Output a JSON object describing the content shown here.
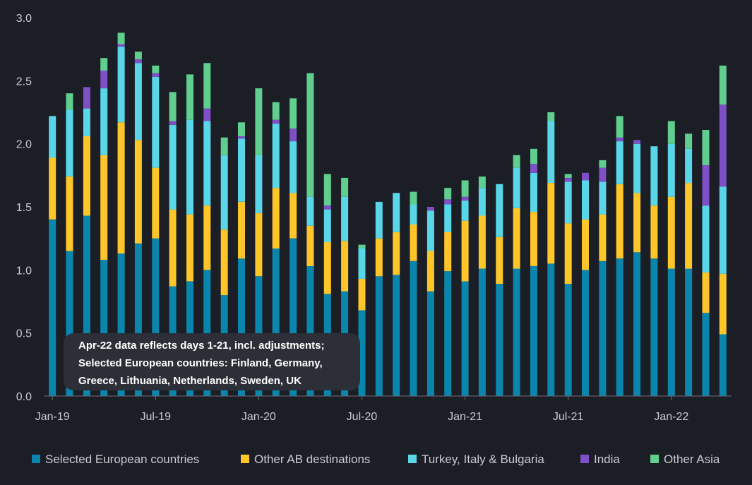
{
  "colors": {
    "background": "#1c1e26",
    "axis": "#6b6e78",
    "text": "#c9cbd1",
    "note_bg": "#2d2f38",
    "note_text": "#ffffff"
  },
  "chart_data": {
    "type": "bar",
    "stacked": true,
    "title": "",
    "xlabel": "",
    "ylabel": "",
    "ylim": [
      0,
      3.0
    ],
    "y_ticks": [
      "0.0",
      "0.5",
      "1.0",
      "1.5",
      "2.0",
      "2.5",
      "3.0"
    ],
    "x_tick_labels": [
      {
        "label": "Jan-19",
        "index": 0
      },
      {
        "label": "Jul-19",
        "index": 6
      },
      {
        "label": "Jan-20",
        "index": 12
      },
      {
        "label": "Jul-20",
        "index": 18
      },
      {
        "label": "Jan-21",
        "index": 24
      },
      {
        "label": "Jul-21",
        "index": 30
      },
      {
        "label": "Jan-22",
        "index": 36
      }
    ],
    "grid": false,
    "legend_position": "bottom",
    "categories": [
      "Jan-19",
      "Feb-19",
      "Mar-19",
      "Apr-19",
      "May-19",
      "Jun-19",
      "Jul-19",
      "Aug-19",
      "Sep-19",
      "Oct-19",
      "Nov-19",
      "Dec-19",
      "Jan-20",
      "Feb-20",
      "Mar-20",
      "Apr-20",
      "May-20",
      "Jun-20",
      "Jul-20",
      "Aug-20",
      "Sep-20",
      "Oct-20",
      "Nov-20",
      "Dec-20",
      "Jan-21",
      "Feb-21",
      "Mar-21",
      "Apr-21",
      "May-21",
      "Jun-21",
      "Jul-21",
      "Aug-21",
      "Sep-21",
      "Oct-21",
      "Nov-21",
      "Dec-21",
      "Jan-22",
      "Feb-22",
      "Mar-22",
      "Apr-22"
    ],
    "series": [
      {
        "name": "Selected European countries",
        "color": "#0a86ad",
        "values": [
          1.4,
          1.15,
          1.43,
          1.08,
          1.13,
          1.21,
          1.25,
          0.87,
          0.91,
          1.0,
          0.8,
          1.09,
          0.95,
          1.17,
          1.25,
          1.03,
          0.81,
          0.83,
          0.68,
          0.95,
          0.96,
          1.07,
          0.83,
          0.99,
          0.91,
          1.01,
          0.89,
          1.01,
          1.03,
          1.05,
          0.89,
          1.0,
          1.07,
          1.09,
          1.14,
          1.09,
          1.01,
          1.01,
          0.66,
          0.49
        ]
      },
      {
        "name": "Other AB destinations",
        "color": "#ffc629",
        "values": [
          0.49,
          0.59,
          0.63,
          0.83,
          1.04,
          0.82,
          0.56,
          0.61,
          0.53,
          0.51,
          0.52,
          0.45,
          0.5,
          0.48,
          0.36,
          0.32,
          0.41,
          0.4,
          0.25,
          0.3,
          0.34,
          0.29,
          0.32,
          0.31,
          0.48,
          0.42,
          0.37,
          0.48,
          0.43,
          0.64,
          0.48,
          0.4,
          0.37,
          0.59,
          0.47,
          0.42,
          0.57,
          0.68,
          0.32,
          0.48
        ]
      },
      {
        "name": "Turkey, Italy & Bulgaria",
        "color": "#59d6e8",
        "values": [
          0.33,
          0.53,
          0.22,
          0.53,
          0.6,
          0.61,
          0.72,
          0.67,
          0.75,
          0.67,
          0.59,
          0.5,
          0.46,
          0.51,
          0.41,
          0.23,
          0.26,
          0.35,
          0.24,
          0.29,
          0.31,
          0.16,
          0.32,
          0.22,
          0.16,
          0.22,
          0.42,
          0.32,
          0.31,
          0.49,
          0.33,
          0.31,
          0.26,
          0.34,
          0.39,
          0.47,
          0.42,
          0.27,
          0.53,
          0.69
        ]
      },
      {
        "name": "India",
        "color": "#7e4fc6",
        "values": [
          0,
          0,
          0.17,
          0.14,
          0.02,
          0.03,
          0.03,
          0.03,
          0,
          0.1,
          0,
          0.02,
          0,
          0.03,
          0.1,
          0,
          0.03,
          0,
          0,
          0,
          0,
          0,
          0.03,
          0.04,
          0.03,
          0,
          0,
          0,
          0.07,
          0,
          0.03,
          0.06,
          0.11,
          0.03,
          0.03,
          0,
          0,
          0,
          0.32,
          0.65
        ]
      },
      {
        "name": "Other Asia",
        "color": "#5fce8e",
        "values": [
          0,
          0.13,
          0,
          0.1,
          0.09,
          0.06,
          0.06,
          0.23,
          0.36,
          0.36,
          0.14,
          0.11,
          0.53,
          0.14,
          0.24,
          0.98,
          0.25,
          0.15,
          0.03,
          0,
          0,
          0.1,
          0,
          0.09,
          0.13,
          0.09,
          0,
          0.1,
          0.12,
          0.07,
          0.03,
          0,
          0.06,
          0.17,
          0,
          0,
          0.18,
          0.12,
          0.28,
          0.31
        ]
      }
    ],
    "annotation": {
      "lines": [
        "Apr-22 data reflects days 1-21,  incl. adjustments;",
        "Selected European countries: Finland, Germany,",
        "Greece, Lithuania, Netherlands, Sweden, UK"
      ]
    }
  }
}
